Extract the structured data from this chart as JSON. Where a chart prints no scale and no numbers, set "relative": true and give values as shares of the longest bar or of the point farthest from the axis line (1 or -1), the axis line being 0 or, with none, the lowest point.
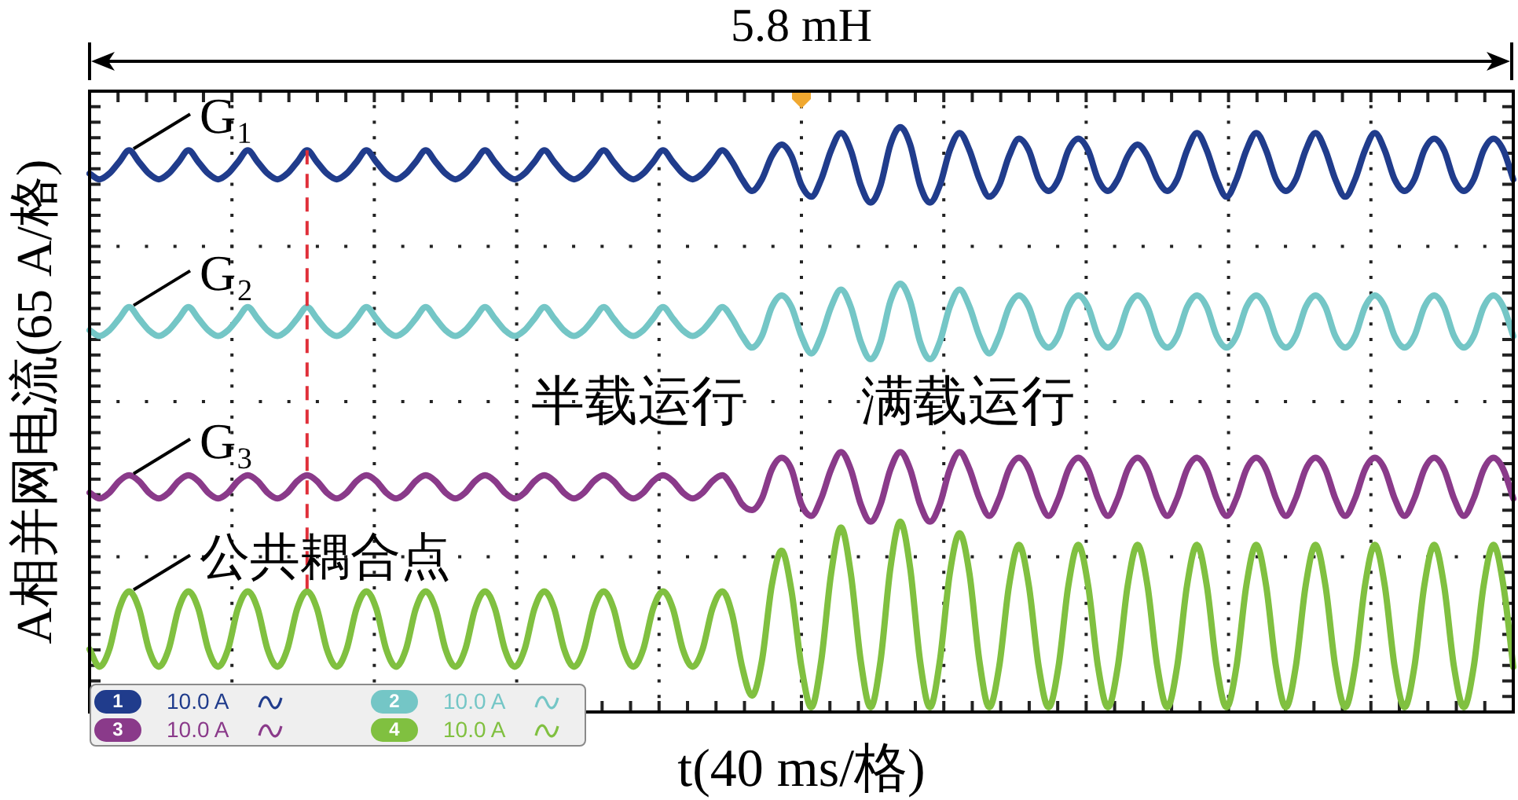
{
  "chart_data": {
    "type": "line",
    "title": "5.8 mH",
    "xlabel": "t(40 ms/格)",
    "ylabel": "A相并网电流(65 A/格)",
    "relative": true,
    "grid": true,
    "marker": "none",
    "categories": [
      null,
      null,
      null,
      null,
      null,
      null,
      null,
      null,
      null,
      null,
      null,
      null,
      null,
      null,
      null,
      null,
      null,
      null,
      null,
      null,
      null,
      null,
      null,
      null,
      null,
      null,
      null,
      null,
      null,
      null,
      null,
      null,
      null,
      null,
      null,
      null,
      null,
      null,
      null,
      null,
      null,
      null,
      null,
      null,
      null,
      null,
      null,
      null,
      null,
      null,
      null,
      null,
      null,
      null,
      null,
      null,
      null,
      null,
      null,
      null,
      null,
      null,
      null,
      null,
      null,
      null,
      null,
      null,
      null,
      null,
      null,
      null,
      null,
      null,
      null,
      null,
      null,
      null,
      null,
      null,
      null,
      null,
      null,
      null,
      null,
      null,
      null,
      null,
      null,
      null,
      null,
      null,
      null,
      null,
      null,
      null,
      null,
      null,
      null,
      null,
      null,
      null,
      null,
      null,
      null,
      null,
      null,
      null,
      null,
      null,
      null,
      null,
      null,
      null,
      null,
      null,
      null,
      null,
      null,
      null,
      null,
      null,
      null,
      null,
      null,
      null,
      null,
      null,
      null,
      null,
      null,
      null,
      null,
      null,
      null,
      null,
      null,
      null,
      null,
      null,
      null,
      null,
      null,
      null,
      null
    ],
    "series": [
      {
        "name": "G₁",
        "color": "#203c8c",
        "values": [
          0.92,
          0.91,
          0.92,
          0.94,
          0.96,
          0.94,
          0.92,
          0.91,
          0.92,
          0.94,
          0.96,
          0.94,
          0.92,
          0.91,
          0.92,
          0.94,
          0.96,
          0.94,
          0.92,
          0.91,
          0.92,
          0.94,
          0.96,
          0.94,
          0.92,
          0.91,
          0.92,
          0.94,
          0.96,
          0.94,
          0.92,
          0.91,
          0.92,
          0.94,
          0.96,
          0.94,
          0.92,
          0.91,
          0.92,
          0.94,
          0.96,
          0.94,
          0.92,
          0.91,
          0.92,
          0.94,
          0.96,
          0.94,
          0.92,
          0.91,
          0.92,
          0.94,
          0.96,
          0.94,
          0.92,
          0.91,
          0.92,
          0.94,
          0.96,
          0.94,
          0.92,
          0.91,
          0.92,
          0.94,
          0.96,
          0.94,
          0.91,
          0.89,
          0.91,
          0.95,
          0.97,
          0.95,
          0.9,
          0.88,
          0.91,
          0.96,
          0.99,
          0.96,
          0.9,
          0.87,
          0.9,
          0.97,
          1,
          0.97,
          0.9,
          0.87,
          0.9,
          0.96,
          0.99,
          0.96,
          0.91,
          0.88,
          0.9,
          0.95,
          0.98,
          0.96,
          0.91,
          0.89,
          0.91,
          0.96,
          0.98,
          0.96,
          0.91,
          0.89,
          0.91,
          0.95,
          0.97,
          0.95,
          0.91,
          0.89,
          0.91,
          0.96,
          0.99,
          0.96,
          0.91,
          0.88,
          0.91,
          0.96,
          0.99,
          0.96,
          0.91,
          0.89,
          0.91,
          0.96,
          0.99,
          0.96,
          0.91,
          0.88,
          0.91,
          0.96,
          0.99,
          0.96,
          0.91,
          0.89,
          0.91,
          0.96,
          0.98,
          0.96,
          0.91,
          0.89,
          0.91,
          0.96,
          0.98,
          0.96,
          0.91
        ]
      },
      {
        "name": "G₂",
        "color": "#74c6c6",
        "values": [
          0.65,
          0.64,
          0.65,
          0.67,
          0.69,
          0.67,
          0.65,
          0.64,
          0.65,
          0.67,
          0.69,
          0.67,
          0.65,
          0.64,
          0.65,
          0.67,
          0.69,
          0.67,
          0.65,
          0.64,
          0.65,
          0.67,
          0.69,
          0.67,
          0.65,
          0.64,
          0.65,
          0.67,
          0.69,
          0.67,
          0.65,
          0.64,
          0.65,
          0.67,
          0.69,
          0.67,
          0.65,
          0.64,
          0.65,
          0.67,
          0.69,
          0.67,
          0.65,
          0.64,
          0.65,
          0.67,
          0.69,
          0.67,
          0.65,
          0.64,
          0.65,
          0.67,
          0.69,
          0.67,
          0.65,
          0.64,
          0.65,
          0.67,
          0.69,
          0.67,
          0.65,
          0.64,
          0.65,
          0.67,
          0.69,
          0.67,
          0.64,
          0.62,
          0.64,
          0.69,
          0.71,
          0.69,
          0.64,
          0.61,
          0.64,
          0.69,
          0.72,
          0.69,
          0.63,
          0.6,
          0.63,
          0.7,
          0.73,
          0.7,
          0.63,
          0.6,
          0.63,
          0.69,
          0.72,
          0.69,
          0.64,
          0.61,
          0.64,
          0.69,
          0.71,
          0.69,
          0.64,
          0.62,
          0.64,
          0.69,
          0.71,
          0.69,
          0.64,
          0.62,
          0.64,
          0.69,
          0.71,
          0.69,
          0.64,
          0.62,
          0.64,
          0.69,
          0.71,
          0.69,
          0.64,
          0.62,
          0.64,
          0.69,
          0.71,
          0.69,
          0.64,
          0.62,
          0.64,
          0.69,
          0.71,
          0.69,
          0.64,
          0.62,
          0.64,
          0.69,
          0.71,
          0.69,
          0.64,
          0.62,
          0.64,
          0.69,
          0.71,
          0.69,
          0.64,
          0.62,
          0.64,
          0.69,
          0.71,
          0.69,
          0.64
        ]
      },
      {
        "name": "G₃",
        "color": "#8a3a8a",
        "values": [
          0.37,
          0.36,
          0.37,
          0.39,
          0.4,
          0.39,
          0.37,
          0.36,
          0.37,
          0.39,
          0.4,
          0.39,
          0.37,
          0.36,
          0.37,
          0.39,
          0.4,
          0.39,
          0.37,
          0.36,
          0.37,
          0.39,
          0.4,
          0.39,
          0.37,
          0.36,
          0.37,
          0.39,
          0.4,
          0.39,
          0.37,
          0.36,
          0.37,
          0.39,
          0.4,
          0.39,
          0.37,
          0.36,
          0.37,
          0.39,
          0.4,
          0.39,
          0.37,
          0.36,
          0.37,
          0.39,
          0.4,
          0.39,
          0.37,
          0.36,
          0.37,
          0.39,
          0.4,
          0.39,
          0.37,
          0.36,
          0.37,
          0.39,
          0.4,
          0.39,
          0.37,
          0.36,
          0.37,
          0.39,
          0.4,
          0.38,
          0.35,
          0.34,
          0.36,
          0.41,
          0.43,
          0.41,
          0.35,
          0.33,
          0.36,
          0.41,
          0.44,
          0.41,
          0.35,
          0.32,
          0.35,
          0.41,
          0.44,
          0.41,
          0.35,
          0.32,
          0.35,
          0.41,
          0.44,
          0.41,
          0.36,
          0.33,
          0.36,
          0.41,
          0.43,
          0.41,
          0.36,
          0.33,
          0.36,
          0.41,
          0.43,
          0.41,
          0.36,
          0.33,
          0.36,
          0.41,
          0.43,
          0.41,
          0.36,
          0.33,
          0.36,
          0.41,
          0.43,
          0.41,
          0.36,
          0.33,
          0.36,
          0.41,
          0.43,
          0.41,
          0.36,
          0.33,
          0.36,
          0.41,
          0.43,
          0.41,
          0.36,
          0.33,
          0.36,
          0.41,
          0.43,
          0.41,
          0.36,
          0.33,
          0.36,
          0.41,
          0.43,
          0.41,
          0.36,
          0.33,
          0.36,
          0.41,
          0.43,
          0.41,
          0.36
        ]
      },
      {
        "name": "公共耦合点",
        "color": "#80c040",
        "values": [
          0.1,
          0.07,
          0.1,
          0.17,
          0.2,
          0.17,
          0.1,
          0.07,
          0.1,
          0.17,
          0.2,
          0.17,
          0.1,
          0.07,
          0.1,
          0.17,
          0.2,
          0.17,
          0.1,
          0.07,
          0.1,
          0.17,
          0.2,
          0.17,
          0.1,
          0.07,
          0.1,
          0.17,
          0.2,
          0.17,
          0.1,
          0.07,
          0.1,
          0.17,
          0.2,
          0.17,
          0.1,
          0.07,
          0.1,
          0.17,
          0.2,
          0.17,
          0.1,
          0.07,
          0.1,
          0.17,
          0.2,
          0.17,
          0.1,
          0.07,
          0.1,
          0.17,
          0.2,
          0.17,
          0.1,
          0.07,
          0.1,
          0.17,
          0.2,
          0.17,
          0.1,
          0.07,
          0.1,
          0.17,
          0.2,
          0.16,
          0.07,
          0.02,
          0.08,
          0.21,
          0.27,
          0.2,
          0.07,
          0,
          0.08,
          0.23,
          0.31,
          0.23,
          0.08,
          0,
          0.08,
          0.24,
          0.32,
          0.24,
          0.08,
          0,
          0.08,
          0.23,
          0.3,
          0.23,
          0.08,
          0,
          0.07,
          0.21,
          0.28,
          0.21,
          0.07,
          0,
          0.07,
          0.21,
          0.28,
          0.21,
          0.07,
          0,
          0.07,
          0.21,
          0.28,
          0.21,
          0.07,
          0,
          0.07,
          0.21,
          0.28,
          0.21,
          0.07,
          0,
          0.07,
          0.21,
          0.28,
          0.21,
          0.07,
          0,
          0.07,
          0.21,
          0.28,
          0.21,
          0.07,
          0,
          0.07,
          0.21,
          0.28,
          0.21,
          0.07,
          0,
          0.07,
          0.21,
          0.28,
          0.21,
          0.07,
          0,
          0.07,
          0.21,
          0.28,
          0.21,
          0.07
        ]
      }
    ],
    "annotations": [
      "半载运行",
      "满载运行",
      "1",
      "10.0 A",
      "2",
      "10.0 A",
      "3",
      "10.0 A",
      "4",
      "10.0 A"
    ]
  }
}
